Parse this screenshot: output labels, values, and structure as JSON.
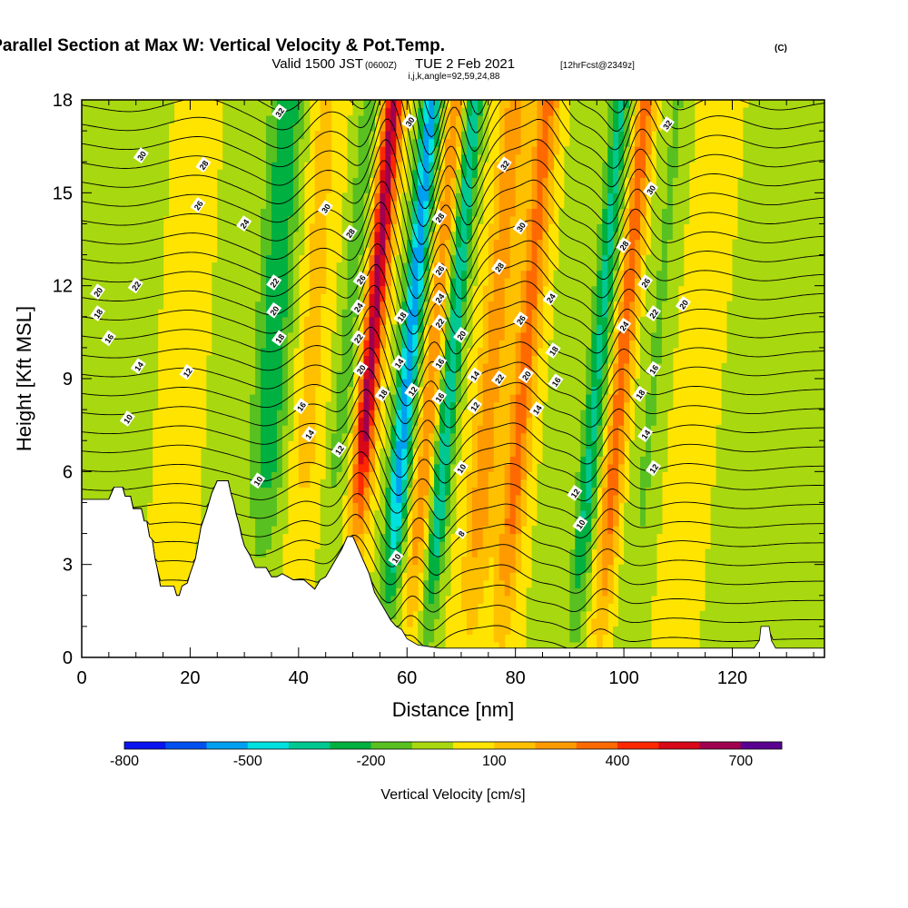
{
  "chart_data": {
    "type": "heatmap",
    "title": {
      "main": "Wind-Parallel Section at Max W: Vertical Velocity & Pot.Temp.",
      "main_suffix": "(C)",
      "line2_a": "Valid 1500 JST",
      "line2_b": "(0600Z)",
      "line2_c": "TUE 2 Feb 2021",
      "line2_d": "[12hrFcst@2349z]",
      "line3": "i,j,k,angle=92,59,24,88"
    },
    "xlabel": "Distance [nm]",
    "ylabel": "Height [Kft MSL]",
    "xlim": [
      0,
      137
    ],
    "ylim": [
      0,
      18
    ],
    "x_ticks": [
      "0",
      "20",
      "40",
      "60",
      "80",
      "100",
      "120"
    ],
    "y_ticks": [
      "0",
      "3",
      "6",
      "9",
      "12",
      "15",
      "18"
    ],
    "colorbar": {
      "label": "Vertical Velocity [cm/s]",
      "tick_labels": [
        "-800",
        "-500",
        "-200",
        "100",
        "400",
        "700"
      ],
      "tick_values": [
        -800,
        -500,
        -200,
        100,
        400,
        700
      ],
      "range": [
        -800,
        800
      ],
      "colors": [
        "#0a14f0",
        "#0050f0",
        "#00a0f0",
        "#00e0e0",
        "#00c890",
        "#00b040",
        "#58c020",
        "#a8d810",
        "#ffe400",
        "#ffc000",
        "#ff9a00",
        "#ff6a00",
        "#ff2800",
        "#d80818",
        "#a00050",
        "#5a0090"
      ]
    },
    "velocity_bands": [
      {
        "x": 9,
        "w": 5,
        "v": -100
      },
      {
        "x": 22,
        "w": 4,
        "v": 50
      },
      {
        "x": 30,
        "w": 3,
        "v": -80
      },
      {
        "x": 38,
        "w": 3.2,
        "v": -280
      },
      {
        "x": 45,
        "w": 3,
        "v": 130
      },
      {
        "x": 53,
        "w": 2,
        "v": -150
      },
      {
        "x": 57.5,
        "w": 1.8,
        "v": 650
      },
      {
        "x": 64.5,
        "w": 1.8,
        "v": -560
      },
      {
        "x": 69,
        "w": 1.6,
        "v": 280
      },
      {
        "x": 72.5,
        "w": 1.6,
        "v": -380
      },
      {
        "x": 80,
        "w": 2.6,
        "v": 260
      },
      {
        "x": 86,
        "w": 2.2,
        "v": 340
      },
      {
        "x": 94,
        "w": 2.6,
        "v": -60
      },
      {
        "x": 99.5,
        "w": 1.8,
        "v": -320
      },
      {
        "x": 104,
        "w": 1.8,
        "v": 360
      },
      {
        "x": 110,
        "w": 2.5,
        "v": -110
      },
      {
        "x": 118,
        "w": 4,
        "v": 60
      },
      {
        "x": 128,
        "w": 4,
        "v": -90
      }
    ],
    "theta_contours": {
      "min": 6,
      "max": 36,
      "step": 1
    },
    "contour_labels": [
      {
        "x": 11,
        "y": 16.2,
        "t": "30"
      },
      {
        "x": 22.5,
        "y": 15.9,
        "t": "28"
      },
      {
        "x": 21.5,
        "y": 14.6,
        "t": "26"
      },
      {
        "x": 30,
        "y": 14,
        "t": "24"
      },
      {
        "x": 36.5,
        "y": 17.6,
        "t": "32"
      },
      {
        "x": 45,
        "y": 14.5,
        "t": "30"
      },
      {
        "x": 49.5,
        "y": 13.7,
        "t": "28"
      },
      {
        "x": 51.5,
        "y": 12.2,
        "t": "26"
      },
      {
        "x": 51,
        "y": 11.3,
        "t": "24"
      },
      {
        "x": 51,
        "y": 10.3,
        "t": "22"
      },
      {
        "x": 51.5,
        "y": 9.3,
        "t": "20"
      },
      {
        "x": 55.5,
        "y": 8.5,
        "t": "18"
      },
      {
        "x": 42,
        "y": 7.2,
        "t": "14"
      },
      {
        "x": 47.5,
        "y": 6.7,
        "t": "12"
      },
      {
        "x": 32.5,
        "y": 5.7,
        "t": "10"
      },
      {
        "x": 35.5,
        "y": 12.1,
        "t": "22"
      },
      {
        "x": 35.5,
        "y": 11.2,
        "t": "20"
      },
      {
        "x": 36.5,
        "y": 10.3,
        "t": "18"
      },
      {
        "x": 40.5,
        "y": 8.1,
        "t": "16"
      },
      {
        "x": 3,
        "y": 11.8,
        "t": "20"
      },
      {
        "x": 10,
        "y": 12,
        "t": "22"
      },
      {
        "x": 3,
        "y": 11.1,
        "t": "18"
      },
      {
        "x": 5,
        "y": 10.3,
        "t": "16"
      },
      {
        "x": 10.5,
        "y": 9.4,
        "t": "14"
      },
      {
        "x": 19.5,
        "y": 9.2,
        "t": "12"
      },
      {
        "x": 8.5,
        "y": 7.7,
        "t": "10"
      },
      {
        "x": 60.5,
        "y": 17.3,
        "t": "30"
      },
      {
        "x": 66,
        "y": 14.2,
        "t": "28"
      },
      {
        "x": 66,
        "y": 12.5,
        "t": "26"
      },
      {
        "x": 66,
        "y": 11.6,
        "t": "24"
      },
      {
        "x": 66,
        "y": 10.8,
        "t": "22"
      },
      {
        "x": 66,
        "y": 9.5,
        "t": "16"
      },
      {
        "x": 66,
        "y": 8.4,
        "t": "16"
      },
      {
        "x": 59,
        "y": 11,
        "t": "18"
      },
      {
        "x": 58.5,
        "y": 9.5,
        "t": "14"
      },
      {
        "x": 61,
        "y": 8.6,
        "t": "12"
      },
      {
        "x": 70,
        "y": 10.4,
        "t": "20"
      },
      {
        "x": 72.5,
        "y": 9.1,
        "t": "14"
      },
      {
        "x": 72.5,
        "y": 8.1,
        "t": "12"
      },
      {
        "x": 70,
        "y": 6.1,
        "t": "10"
      },
      {
        "x": 70,
        "y": 4,
        "t": "8"
      },
      {
        "x": 58,
        "y": 3.2,
        "t": "10"
      },
      {
        "x": 78,
        "y": 15.9,
        "t": "32"
      },
      {
        "x": 81,
        "y": 13.9,
        "t": "30"
      },
      {
        "x": 77,
        "y": 12.6,
        "t": "28"
      },
      {
        "x": 81,
        "y": 10.9,
        "t": "26"
      },
      {
        "x": 86.5,
        "y": 11.6,
        "t": "24"
      },
      {
        "x": 77,
        "y": 9,
        "t": "22"
      },
      {
        "x": 82,
        "y": 9.1,
        "t": "20"
      },
      {
        "x": 87,
        "y": 9.9,
        "t": "18"
      },
      {
        "x": 87.5,
        "y": 8.9,
        "t": "16"
      },
      {
        "x": 84,
        "y": 8,
        "t": "14"
      },
      {
        "x": 91,
        "y": 5.3,
        "t": "12"
      },
      {
        "x": 92,
        "y": 4.3,
        "t": "10"
      },
      {
        "x": 108,
        "y": 17.2,
        "t": "32"
      },
      {
        "x": 105,
        "y": 15.1,
        "t": "30"
      },
      {
        "x": 100,
        "y": 13.3,
        "t": "28"
      },
      {
        "x": 104,
        "y": 12.1,
        "t": "26"
      },
      {
        "x": 100,
        "y": 10.7,
        "t": "24"
      },
      {
        "x": 105.5,
        "y": 11.1,
        "t": "22"
      },
      {
        "x": 111,
        "y": 11.4,
        "t": "20"
      },
      {
        "x": 103,
        "y": 8.5,
        "t": "18"
      },
      {
        "x": 105.5,
        "y": 9.3,
        "t": "16"
      },
      {
        "x": 104,
        "y": 7.2,
        "t": "14"
      },
      {
        "x": 105.5,
        "y": 6.1,
        "t": "12"
      }
    ],
    "terrain": [
      [
        0,
        5.1
      ],
      [
        5,
        5.1
      ],
      [
        6,
        5.5
      ],
      [
        7.5,
        5.5
      ],
      [
        8,
        5.2
      ],
      [
        9,
        5.2
      ],
      [
        9.5,
        4.8
      ],
      [
        11,
        4.8
      ],
      [
        11.5,
        4.4
      ],
      [
        12,
        4.4
      ],
      [
        12.5,
        3.9
      ],
      [
        13,
        3.8
      ],
      [
        13.5,
        3.2
      ],
      [
        14,
        2.8
      ],
      [
        14.5,
        2.3
      ],
      [
        17,
        2.3
      ],
      [
        17.5,
        2.0
      ],
      [
        18,
        2.0
      ],
      [
        18.5,
        2.3
      ],
      [
        19.5,
        2.4
      ],
      [
        20,
        2.7
      ],
      [
        21,
        3.2
      ],
      [
        21.5,
        3.7
      ],
      [
        22,
        4.2
      ],
      [
        23,
        4.7
      ],
      [
        24,
        5.3
      ],
      [
        25,
        5.7
      ],
      [
        27,
        5.7
      ],
      [
        27.5,
        5.3
      ],
      [
        28,
        5.0
      ],
      [
        28.5,
        4.6
      ],
      [
        29,
        4.3
      ],
      [
        29.5,
        3.9
      ],
      [
        30,
        3.6
      ],
      [
        31,
        3.3
      ],
      [
        32,
        2.9
      ],
      [
        34,
        2.9
      ],
      [
        35,
        2.6
      ],
      [
        36,
        2.6
      ],
      [
        37,
        2.7
      ],
      [
        39,
        2.5
      ],
      [
        41,
        2.5
      ],
      [
        43,
        2.2
      ],
      [
        44,
        2.5
      ],
      [
        45,
        2.6
      ],
      [
        46,
        2.9
      ],
      [
        47,
        3.2
      ],
      [
        48,
        3.5
      ],
      [
        49,
        3.9
      ],
      [
        50,
        3.9
      ],
      [
        51,
        3.5
      ],
      [
        52,
        3.1
      ],
      [
        53,
        2.7
      ],
      [
        54,
        2.1
      ],
      [
        55,
        1.8
      ],
      [
        56,
        1.5
      ],
      [
        57,
        1.2
      ],
      [
        58,
        1.0
      ],
      [
        59,
        0.9
      ],
      [
        60,
        0.6
      ],
      [
        61,
        0.5
      ],
      [
        62,
        0.4
      ],
      [
        64,
        0.35
      ],
      [
        66,
        0.3
      ],
      [
        68,
        0.3
      ],
      [
        70,
        0.3
      ],
      [
        124,
        0.3
      ],
      [
        125,
        0.55
      ],
      [
        125.3,
        1.0
      ],
      [
        126.8,
        1.0
      ],
      [
        127.2,
        0.55
      ],
      [
        128,
        0.3
      ],
      [
        137,
        0.3
      ]
    ]
  }
}
